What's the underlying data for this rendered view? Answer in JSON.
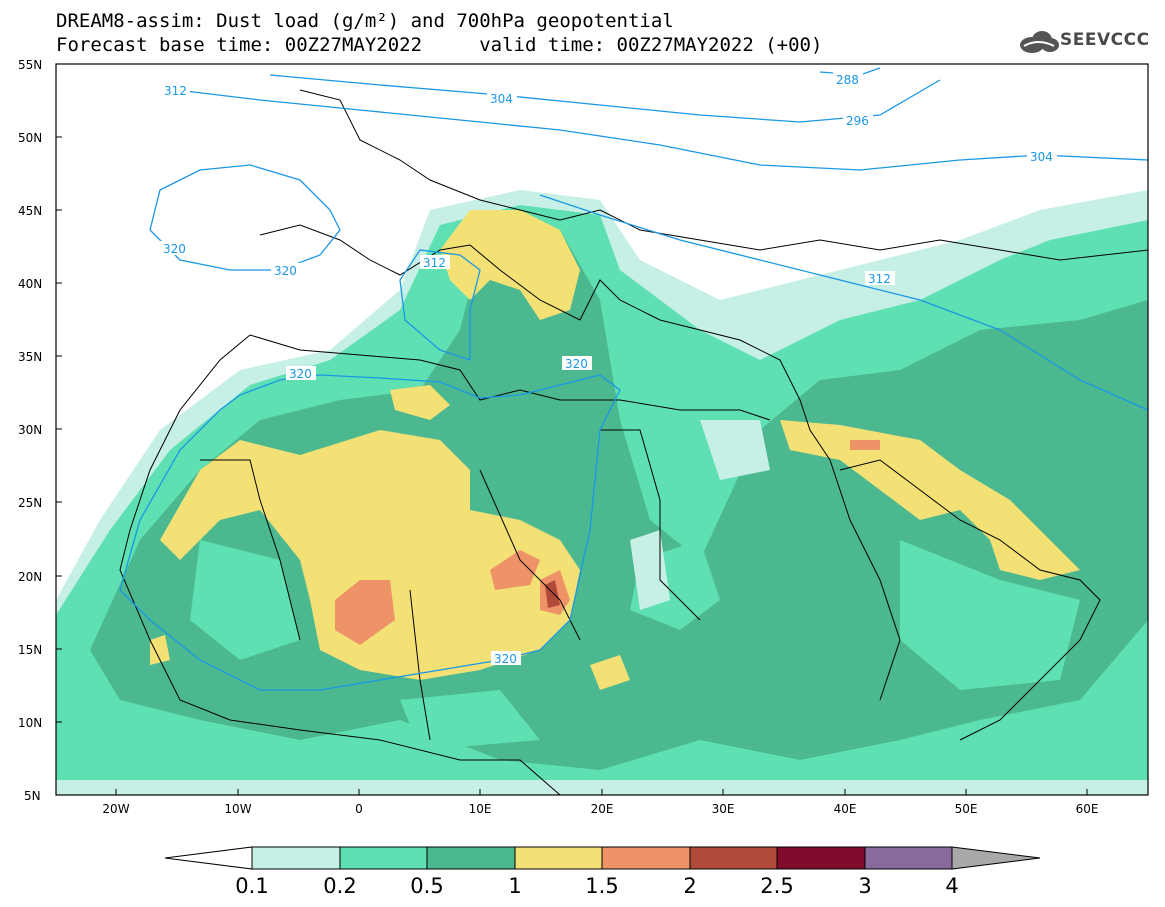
{
  "title_line1": "DREAM8-assim: Dust load (g/m²) and 700hPa geopotential",
  "title_line2": "Forecast base time: 00Z27MAY2022     valid time: 00Z27MAY2022 (+00)",
  "logo_text": "SEEVCCC",
  "lat_labels": [
    "55N",
    "50N",
    "45N",
    "40N",
    "35N",
    "30N",
    "25N",
    "20N",
    "15N",
    "10N",
    "5N"
  ],
  "lon_labels": [
    "20W",
    "10W",
    "0",
    "10E",
    "20E",
    "30E",
    "40E",
    "50E",
    "60E"
  ],
  "geopotential_labels": [
    "312",
    "304",
    "288",
    "296",
    "304",
    "320",
    "320",
    "312",
    "312",
    "320",
    "320",
    "320"
  ],
  "colorbar": {
    "ticks": [
      "0.1",
      "0.2",
      "0.5",
      "1",
      "1.5",
      "2",
      "2.5",
      "3",
      "4"
    ],
    "colors": [
      "#c6efe6",
      "#5ee0b3",
      "#4cb890",
      "#f3e176",
      "#ee9268",
      "#b04b3c",
      "#800b2c",
      "#8a6a9c"
    ],
    "under_color": "#ffffff",
    "over_color": "#a9a9a9"
  },
  "layer_colors": {
    "land": "#ffffff",
    "coast": "#000000",
    "contour": "#1a98e6"
  }
}
